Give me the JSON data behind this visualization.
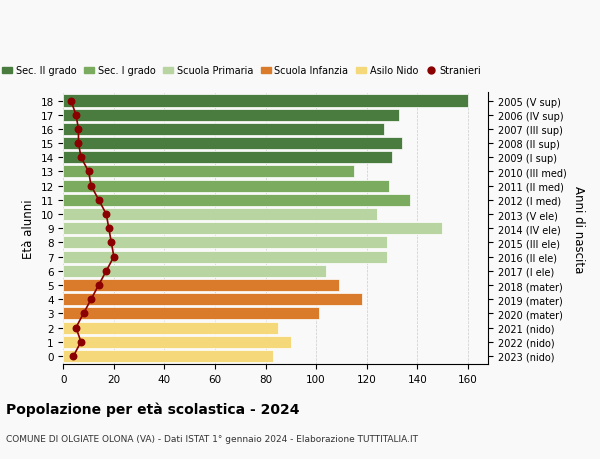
{
  "ages": [
    18,
    17,
    16,
    15,
    14,
    13,
    12,
    11,
    10,
    9,
    8,
    7,
    6,
    5,
    4,
    3,
    2,
    1,
    0
  ],
  "years": [
    "2005 (V sup)",
    "2006 (IV sup)",
    "2007 (III sup)",
    "2008 (II sup)",
    "2009 (I sup)",
    "2010 (III med)",
    "2011 (II med)",
    "2012 (I med)",
    "2013 (V ele)",
    "2014 (IV ele)",
    "2015 (III ele)",
    "2016 (II ele)",
    "2017 (I ele)",
    "2018 (mater)",
    "2019 (mater)",
    "2020 (mater)",
    "2021 (nido)",
    "2022 (nido)",
    "2023 (nido)"
  ],
  "bar_values": [
    160,
    133,
    127,
    134,
    130,
    115,
    129,
    137,
    124,
    150,
    128,
    128,
    104,
    109,
    118,
    101,
    85,
    90,
    83
  ],
  "stranieri": [
    3,
    5,
    6,
    6,
    7,
    10,
    11,
    14,
    17,
    18,
    19,
    20,
    17,
    14,
    11,
    8,
    5,
    7,
    4
  ],
  "bar_colors": [
    "#4a7c3f",
    "#4a7c3f",
    "#4a7c3f",
    "#4a7c3f",
    "#4a7c3f",
    "#7aab5e",
    "#7aab5e",
    "#7aab5e",
    "#b8d4a0",
    "#b8d4a0",
    "#b8d4a0",
    "#b8d4a0",
    "#b8d4a0",
    "#d97b2a",
    "#d97b2a",
    "#d97b2a",
    "#f5d87a",
    "#f5d87a",
    "#f5d87a"
  ],
  "legend_labels": [
    "Sec. II grado",
    "Sec. I grado",
    "Scuola Primaria",
    "Scuola Infanzia",
    "Asilo Nido",
    "Stranieri"
  ],
  "legend_colors": [
    "#4a7c3f",
    "#7aab5e",
    "#b8d4a0",
    "#d97b2a",
    "#f5d87a",
    "#8b1a1a"
  ],
  "stranieri_color": "#8b0000",
  "title": "Popolazione per età scolastica - 2024",
  "subtitle": "COMUNE DI OLGIATE OLONA (VA) - Dati ISTAT 1° gennaio 2024 - Elaborazione TUTTITALIA.IT",
  "ylabel": "Età alunni",
  "ylabel2": "Anni di nascita",
  "xlabel_ticks": [
    0,
    20,
    40,
    60,
    80,
    100,
    120,
    140,
    160
  ],
  "bg_color": "#f9f9f9",
  "bar_bg_color": "#ffffff"
}
